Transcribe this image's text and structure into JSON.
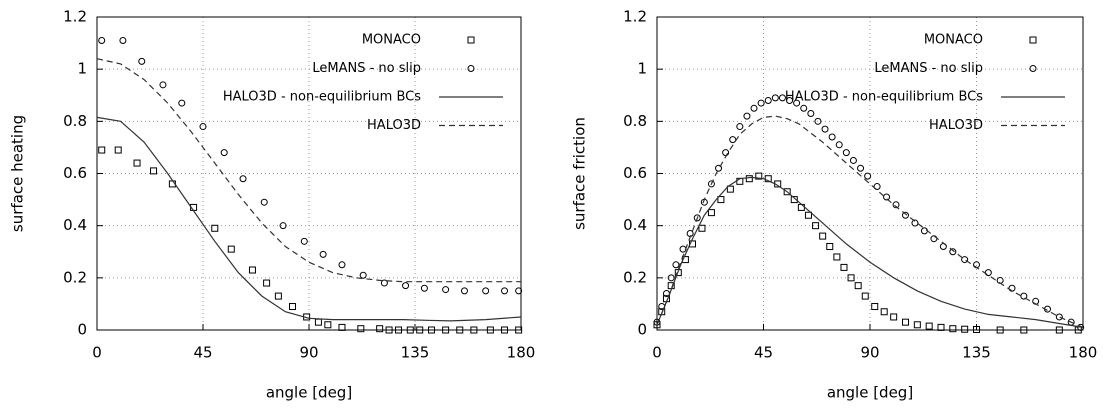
{
  "chart_data": [
    {
      "type": "line",
      "xlabel": "angle [deg]",
      "ylabel": "surface heating",
      "xlim": [
        0,
        180
      ],
      "xticks": [
        0,
        45,
        90,
        135,
        180
      ],
      "ylim": [
        0,
        1.2
      ],
      "yticks": [
        0,
        0.2,
        0.4,
        0.6,
        0.8,
        1,
        1.2
      ],
      "grid": true,
      "legend": "upper right",
      "series": [
        {
          "name": "MONACO",
          "style": "square",
          "color": "#000000",
          "x": [
            2,
            9,
            17,
            24,
            32,
            41,
            50,
            57,
            66,
            72,
            77,
            83,
            89,
            94,
            98,
            104,
            112,
            120,
            124,
            128,
            133,
            137,
            142,
            148,
            154,
            160,
            167,
            173,
            179
          ],
          "values": [
            0.69,
            0.69,
            0.64,
            0.61,
            0.56,
            0.47,
            0.39,
            0.31,
            0.23,
            0.18,
            0.13,
            0.09,
            0.05,
            0.03,
            0.02,
            0.01,
            0.005,
            0.005,
            0,
            0,
            0,
            0,
            0,
            0,
            0,
            0,
            0,
            0,
            0
          ]
        },
        {
          "name": "LeMANS - no slip",
          "style": "circle",
          "color": "#000000",
          "x": [
            2,
            11,
            19,
            28,
            36,
            45,
            54,
            62,
            71,
            79,
            88,
            96,
            104,
            113,
            122,
            131,
            139,
            148,
            156,
            165,
            173,
            179
          ],
          "values": [
            1.11,
            1.11,
            1.03,
            0.94,
            0.87,
            0.78,
            0.68,
            0.58,
            0.49,
            0.4,
            0.34,
            0.29,
            0.25,
            0.21,
            0.18,
            0.17,
            0.16,
            0.155,
            0.15,
            0.15,
            0.15,
            0.15
          ]
        },
        {
          "name": "HALO3D - non-equilibrium BCs",
          "style": "solid",
          "color": "#333333",
          "x": [
            0,
            10,
            20,
            30,
            40,
            50,
            60,
            70,
            80,
            90,
            100,
            110,
            120,
            130,
            140,
            150,
            165,
            180
          ],
          "values": [
            0.815,
            0.8,
            0.72,
            0.6,
            0.47,
            0.34,
            0.22,
            0.13,
            0.07,
            0.045,
            0.04,
            0.04,
            0.04,
            0.04,
            0.037,
            0.035,
            0.04,
            0.05
          ]
        },
        {
          "name": "HALO3D",
          "style": "dashed",
          "color": "#333333",
          "x": [
            0,
            10,
            20,
            30,
            40,
            50,
            60,
            70,
            80,
            90,
            100,
            110,
            120,
            130,
            150,
            180
          ],
          "values": [
            1.04,
            1.02,
            0.96,
            0.87,
            0.76,
            0.64,
            0.52,
            0.41,
            0.32,
            0.26,
            0.22,
            0.2,
            0.19,
            0.185,
            0.185,
            0.185
          ]
        }
      ]
    },
    {
      "type": "line",
      "xlabel": "angle [deg]",
      "ylabel": "surface friction",
      "xlim": [
        0,
        180
      ],
      "xticks": [
        0,
        45,
        90,
        135,
        180
      ],
      "ylim": [
        0,
        1.2
      ],
      "yticks": [
        0,
        0.2,
        0.4,
        0.6,
        0.8,
        1,
        1.2
      ],
      "grid": true,
      "legend": "upper right",
      "series": [
        {
          "name": "MONACO",
          "style": "square",
          "color": "#000000",
          "x": [
            0,
            2,
            4,
            6,
            9,
            12,
            15,
            19,
            23,
            27,
            31,
            35,
            39,
            43,
            47,
            51,
            55,
            58,
            61,
            64,
            67,
            70,
            73,
            76,
            79,
            82,
            85,
            88,
            92,
            96,
            100,
            105,
            110,
            115,
            120,
            125,
            130,
            135,
            145,
            155,
            170,
            178
          ],
          "values": [
            0.02,
            0.07,
            0.12,
            0.17,
            0.22,
            0.27,
            0.33,
            0.39,
            0.45,
            0.5,
            0.54,
            0.57,
            0.58,
            0.59,
            0.58,
            0.56,
            0.53,
            0.5,
            0.47,
            0.44,
            0.4,
            0.36,
            0.32,
            0.28,
            0.24,
            0.2,
            0.17,
            0.13,
            0.09,
            0.07,
            0.05,
            0.03,
            0.02,
            0.015,
            0.01,
            0.005,
            0.003,
            0.002,
            0,
            0,
            0,
            0
          ]
        },
        {
          "name": "LeMANS - no slip",
          "style": "circle",
          "color": "#000000",
          "x": [
            0,
            2,
            4,
            6,
            8,
            11,
            14,
            17,
            20,
            23,
            26,
            29,
            32,
            35,
            38,
            41,
            44,
            47,
            50,
            53,
            56,
            59,
            62,
            65,
            68,
            71,
            74,
            77,
            80,
            83,
            86,
            89,
            93,
            97,
            101,
            105,
            109,
            113,
            117,
            121,
            125,
            130,
            135,
            140,
            145,
            150,
            155,
            160,
            165,
            170,
            175,
            179
          ],
          "values": [
            0.03,
            0.09,
            0.14,
            0.2,
            0.25,
            0.31,
            0.37,
            0.43,
            0.49,
            0.56,
            0.62,
            0.68,
            0.73,
            0.78,
            0.82,
            0.85,
            0.87,
            0.88,
            0.89,
            0.89,
            0.88,
            0.87,
            0.85,
            0.83,
            0.8,
            0.77,
            0.74,
            0.71,
            0.68,
            0.65,
            0.62,
            0.59,
            0.55,
            0.51,
            0.48,
            0.44,
            0.41,
            0.38,
            0.35,
            0.32,
            0.3,
            0.27,
            0.25,
            0.22,
            0.19,
            0.16,
            0.13,
            0.11,
            0.08,
            0.05,
            0.03,
            0.01
          ]
        },
        {
          "name": "HALO3D - non-equilibrium BCs",
          "style": "solid",
          "color": "#333333",
          "x": [
            0,
            5,
            10,
            15,
            20,
            25,
            30,
            35,
            40,
            45,
            50,
            55,
            60,
            70,
            80,
            90,
            100,
            110,
            120,
            130,
            140,
            150,
            160,
            170,
            180
          ],
          "values": [
            0.02,
            0.13,
            0.25,
            0.35,
            0.44,
            0.5,
            0.55,
            0.58,
            0.585,
            0.58,
            0.56,
            0.53,
            0.49,
            0.41,
            0.33,
            0.26,
            0.2,
            0.15,
            0.11,
            0.08,
            0.06,
            0.05,
            0.04,
            0.025,
            0.01
          ]
        },
        {
          "name": "HALO3D",
          "style": "dashed",
          "color": "#333333",
          "x": [
            0,
            5,
            10,
            15,
            20,
            25,
            30,
            35,
            40,
            45,
            50,
            55,
            60,
            70,
            80,
            90,
            100,
            110,
            120,
            130,
            140,
            150,
            160,
            170,
            180
          ],
          "values": [
            0.02,
            0.13,
            0.26,
            0.38,
            0.5,
            0.6,
            0.68,
            0.75,
            0.79,
            0.815,
            0.82,
            0.81,
            0.79,
            0.72,
            0.64,
            0.56,
            0.48,
            0.41,
            0.34,
            0.27,
            0.21,
            0.15,
            0.1,
            0.05,
            0.01
          ]
        }
      ]
    }
  ]
}
